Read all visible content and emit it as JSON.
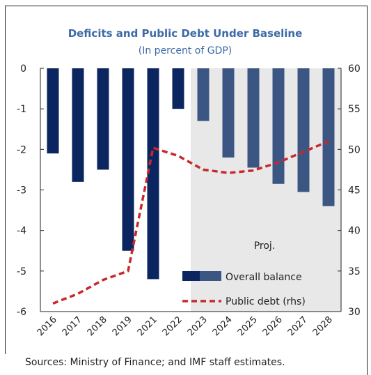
{
  "chart_data": {
    "type": "bar",
    "title": "Deficits and Public Debt Under Baseline",
    "subtitle": "(In percent of GDP)",
    "categories": [
      "2016",
      "2017",
      "2018",
      "2019",
      "2021",
      "2022",
      "2023",
      "2024",
      "2025",
      "2026",
      "2027",
      "2028"
    ],
    "series": [
      {
        "name": "Overall balance",
        "axis": "left",
        "type": "bar",
        "values": [
          -2.1,
          -2.8,
          -2.5,
          -4.5,
          -5.2,
          -1.0,
          -1.3,
          -2.2,
          -2.45,
          -2.85,
          -3.05,
          -3.4
        ],
        "colors": {
          "historical": "#0b2560",
          "projection": "#3c5683"
        }
      },
      {
        "name": "Public debt (rhs)",
        "axis": "right",
        "type": "line",
        "style": "dashed",
        "color": "#c8282d",
        "values": [
          31.0,
          32.2,
          33.9,
          35.0,
          50.2,
          49.2,
          47.5,
          47.1,
          47.4,
          48.4,
          49.7,
          51.0
        ]
      }
    ],
    "y_left": {
      "min": -6,
      "max": 0,
      "ticks": [
        "0",
        "-1",
        "-2",
        "-3",
        "-4",
        "-5",
        "-6"
      ]
    },
    "y_right": {
      "min": 30,
      "max": 60,
      "ticks": [
        "60",
        "55",
        "50",
        "45",
        "40",
        "35",
        "30"
      ]
    },
    "projection_label": "Proj.",
    "projection_start_index": 6,
    "projection_shade_color": "#e8e8e8",
    "grid": false,
    "legend_placement": "bottom-right",
    "title_color": "#3c6aa6"
  },
  "source_note": "Sources: Ministry of Finance; and IMF staff estimates."
}
